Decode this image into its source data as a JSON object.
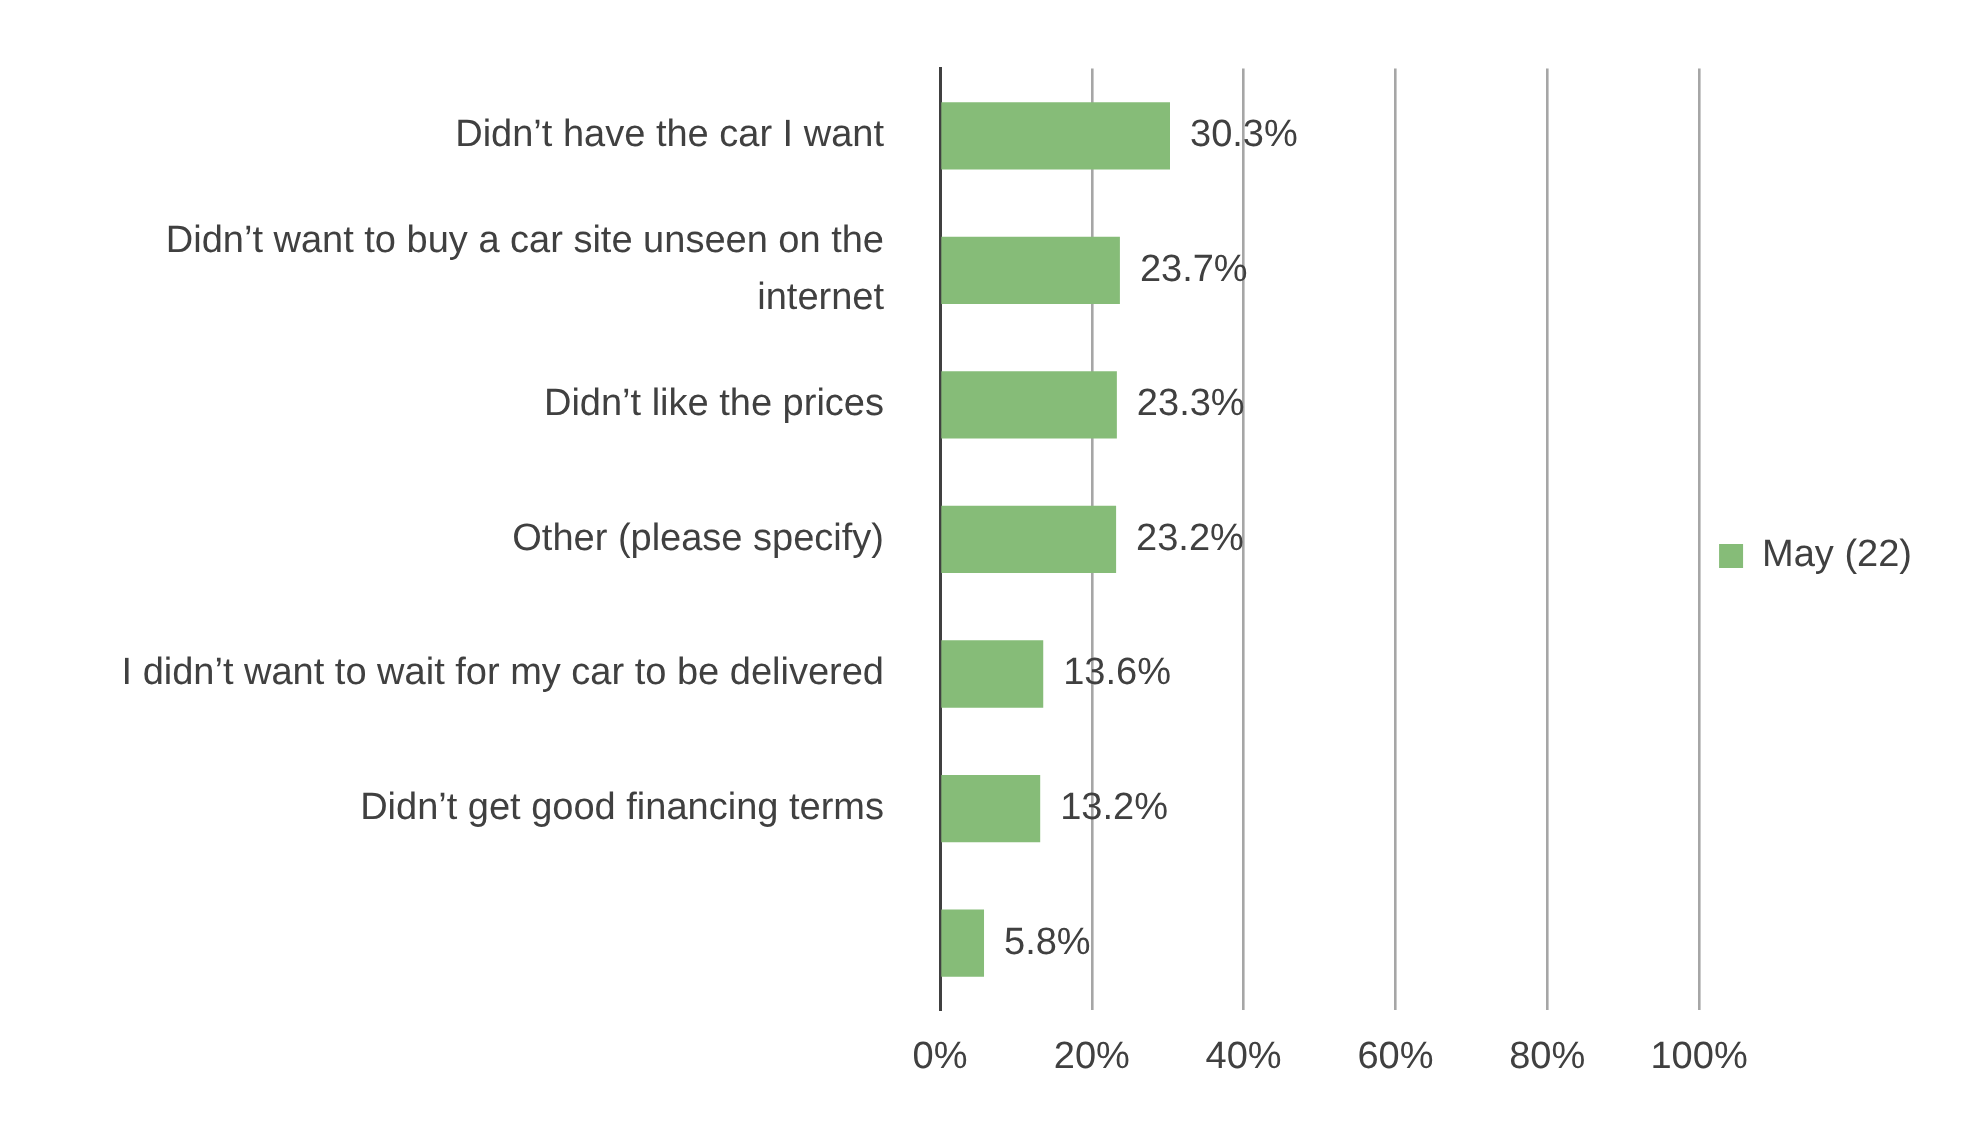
{
  "chart_data": {
    "type": "bar",
    "orientation": "horizontal",
    "categories": [
      "Didn’t have the car I want",
      "Didn’t want to buy a car site unseen on the internet",
      "Didn’t like the prices",
      "Other (please specify)",
      "I didn’t want to wait for my car to be delivered",
      "Didn’t get good financing terms",
      null
    ],
    "series": [
      {
        "name": "May (22)",
        "color": "#86bc78",
        "values": [
          30.3,
          23.7,
          23.3,
          23.2,
          13.6,
          13.2,
          5.8
        ],
        "value_labels": [
          "30.3%",
          "23.7%",
          "23.3%",
          "23.2%",
          "13.6%",
          "13.2%",
          "5.8%"
        ]
      }
    ],
    "xlim": [
      0,
      100
    ],
    "xticks": [
      {
        "value": 0,
        "label": "0%"
      },
      {
        "value": 20,
        "label": "20%"
      },
      {
        "value": 40,
        "label": "40%"
      },
      {
        "value": 60,
        "label": "60%"
      },
      {
        "value": 80,
        "label": "80%"
      },
      {
        "value": 100,
        "label": "100%"
      }
    ],
    "grid": "x",
    "legend": "right"
  }
}
